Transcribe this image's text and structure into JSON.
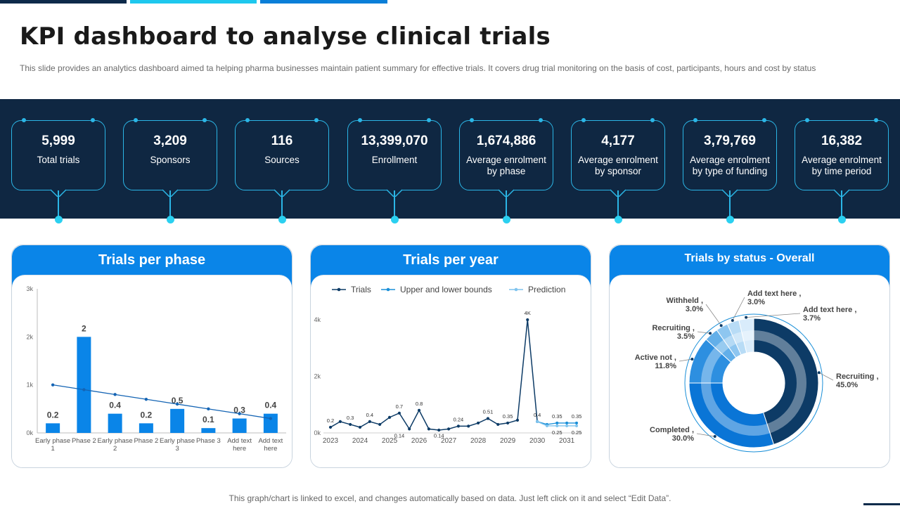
{
  "header": {
    "title": "KPI dashboard to analyse clinical trials",
    "subtitle": "This slide provides an analytics dashboard aimed ta helping pharma businesses maintain patient summary for effective trials. It covers drug trial monitoring on the basis of cost, participants, hours and cost by status"
  },
  "kpis": [
    {
      "value": "5,999",
      "label": "Total trials"
    },
    {
      "value": "3,209",
      "label": "Sponsors"
    },
    {
      "value": "116",
      "label": "Sources"
    },
    {
      "value": "13,399,070",
      "label": "Enrollment"
    },
    {
      "value": "1,674,886",
      "label": "Average enrolment by phase"
    },
    {
      "value": "4,177",
      "label": "Average enrolment by sponsor"
    },
    {
      "value": "3,79,769",
      "label": "Average enrolment by type of funding"
    },
    {
      "value": "16,382",
      "label": "Average enrolment by time period"
    }
  ],
  "colors": {
    "navy": "#0f2742",
    "accent_cyan": "#2bb6e6",
    "panel_blue": "#0a85e8",
    "bar_blue": "#0a85e8",
    "line_dark": "#0d3b66",
    "line_mid": "#1a8fd8",
    "line_light": "#7fc4ee"
  },
  "chart_data": [
    {
      "type": "bar",
      "title": "Trials per phase",
      "categories": [
        "Early phase 1",
        "Phase 2",
        "Early phase 2",
        "Phase 2",
        "Early phase 3",
        "Phase 3",
        "Add text here",
        "Add text here"
      ],
      "values": [
        0.2,
        2,
        0.4,
        0.2,
        0.5,
        0.1,
        0.3,
        0.4
      ],
      "value_labels": [
        "0.2",
        "2",
        "0.4",
        "0.2",
        "0.5",
        "0.1",
        "0.3",
        "0.4"
      ],
      "trendline": [
        1.0,
        0.9,
        0.8,
        0.7,
        0.6,
        0.5,
        0.4,
        0.3
      ],
      "y_ticks": [
        "0k",
        "1k",
        "2k",
        "3k"
      ],
      "ylim": [
        0,
        3
      ],
      "grid": false
    },
    {
      "type": "line",
      "title": "Trials per year",
      "legend": [
        "Trials",
        "Upper and lower bounds",
        "Prediction"
      ],
      "legend_position": "top",
      "x_ticks": [
        "2023",
        "2024",
        "2025",
        "2026",
        "2027",
        "2028",
        "2029",
        "2030",
        "2031"
      ],
      "y_ticks": [
        "0k",
        "2k",
        "4k"
      ],
      "ylim": [
        0,
        4
      ],
      "series": [
        {
          "name": "Trials",
          "x": [
            2023.0,
            2023.33,
            2023.67,
            2024.0,
            2024.33,
            2024.67,
            2025.0,
            2025.33,
            2025.67,
            2026.0,
            2026.33,
            2026.67,
            2027.0,
            2027.33,
            2027.67,
            2028.0,
            2028.33,
            2028.67,
            2029.0,
            2029.33,
            2029.67,
            2030.0
          ],
          "values": [
            0.2,
            0.4,
            0.3,
            0.2,
            0.4,
            0.3,
            0.55,
            0.7,
            0.14,
            0.8,
            0.14,
            0.1,
            0.14,
            0.24,
            0.24,
            0.35,
            0.51,
            0.3,
            0.35,
            0.45,
            4.0,
            0.4
          ]
        },
        {
          "name": "Upper and lower bounds",
          "x": [
            2030.0,
            2030.33,
            2030.67,
            2031.0,
            2031.33
          ],
          "values": [
            0.4,
            0.3,
            0.35,
            0.35,
            0.35
          ]
        },
        {
          "name": "Prediction",
          "x": [
            2030.0,
            2030.33,
            2030.67,
            2031.0,
            2031.33
          ],
          "values": [
            0.4,
            0.25,
            0.25,
            0.25,
            0.25
          ]
        }
      ],
      "data_labels": [
        {
          "text": "0.2",
          "x": 2023.0,
          "y": 0.2
        },
        {
          "text": "0.3",
          "x": 2023.67,
          "y": 0.3
        },
        {
          "text": "0.4",
          "x": 2024.33,
          "y": 0.4
        },
        {
          "text": "0.7",
          "x": 2025.33,
          "y": 0.7
        },
        {
          "text": "0.14",
          "x": 2025.33,
          "y": 0.14
        },
        {
          "text": "0.8",
          "x": 2026.0,
          "y": 0.8
        },
        {
          "text": "0.14",
          "x": 2026.67,
          "y": 0.14
        },
        {
          "text": "0.24",
          "x": 2027.33,
          "y": 0.24
        },
        {
          "text": "0.51",
          "x": 2028.33,
          "y": 0.51
        },
        {
          "text": "0.35",
          "x": 2029.0,
          "y": 0.35
        },
        {
          "text": "4K",
          "x": 2029.67,
          "y": 4.0
        },
        {
          "text": "0.4",
          "x": 2030.0,
          "y": 0.4
        },
        {
          "text": "0.25",
          "x": 2030.67,
          "y": 0.25
        },
        {
          "text": "0.35",
          "x": 2030.67,
          "y": 0.35
        },
        {
          "text": "0.35",
          "x": 2031.33,
          "y": 0.35
        },
        {
          "text": "0.25",
          "x": 2031.33,
          "y": 0.25
        }
      ]
    },
    {
      "type": "pie",
      "title": "Trials by status - Overall",
      "labels": [
        "Recruiting",
        "Completed",
        "Active not",
        "Recruiting",
        "Withheld",
        "Add text here",
        "Add text here"
      ],
      "values": [
        45.0,
        30.0,
        11.8,
        3.5,
        3.0,
        3.0,
        3.7
      ],
      "label_texts": [
        "Recruiting , 45.0%",
        "Completed, 30.0%",
        "Active not , 11.8%",
        "Recruiting , 3.5%",
        "Withheld , 3.0%",
        "Add text here, 3.0%",
        "Add text here, 3.7%"
      ],
      "colors": [
        "#0d3b66",
        "#0a75d6",
        "#2d8fe0",
        "#62afe9",
        "#8ec6f0",
        "#b8dcf6",
        "#d9ecfb"
      ]
    }
  ],
  "footer": {
    "note": "This graph/chart is linked to excel,  and changes automatically based on data. Just left click on it and select “Edit Data”."
  }
}
